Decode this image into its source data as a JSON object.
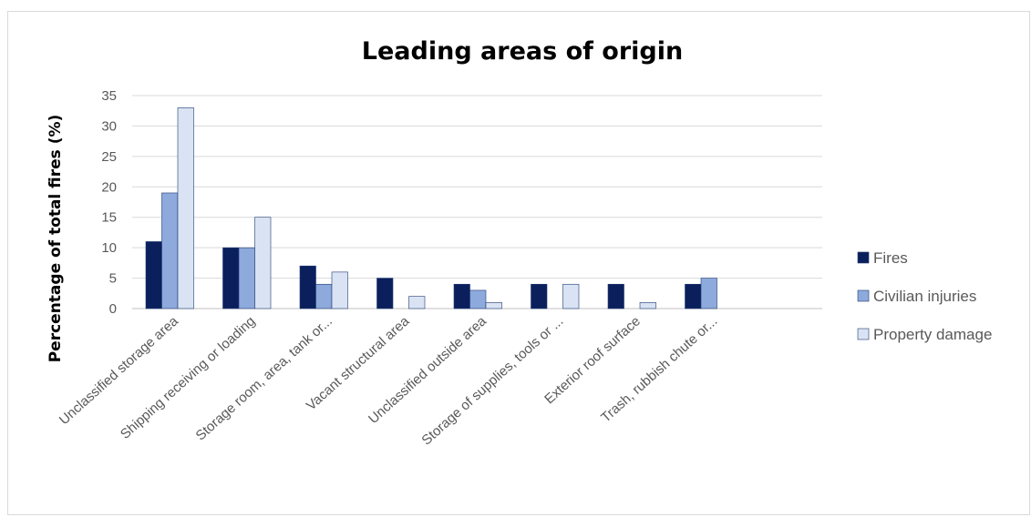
{
  "chart_data": {
    "type": "bar",
    "title": "Leading areas of origin",
    "xlabel": "",
    "ylabel": "Percentage of total fires (%)",
    "ylim": [
      0,
      35
    ],
    "yticks": [
      0,
      5,
      10,
      15,
      20,
      25,
      30,
      35
    ],
    "grid": true,
    "legend_position": "right",
    "categories": [
      "Unclassified storage area",
      "Shipping receiving or loading",
      "Storage room, area, tank or...",
      "Vacant structural area",
      "Unclassified outside area",
      "Storage of supplies, tools or ...",
      "Exterior roof surface",
      "Trash, rubbish chute or..."
    ],
    "series": [
      {
        "name": "Fires",
        "color": "#0b1f5c",
        "values": [
          11,
          10,
          7,
          5,
          4,
          4,
          4,
          4
        ]
      },
      {
        "name": "Civilian injuries",
        "color": "#8ea9db",
        "values": [
          19,
          10,
          4,
          0,
          3,
          0,
          0,
          5
        ]
      },
      {
        "name": "Property damage",
        "color": "#dae3f3",
        "values": [
          33,
          15,
          6,
          2,
          1,
          4,
          1,
          0
        ]
      }
    ]
  }
}
